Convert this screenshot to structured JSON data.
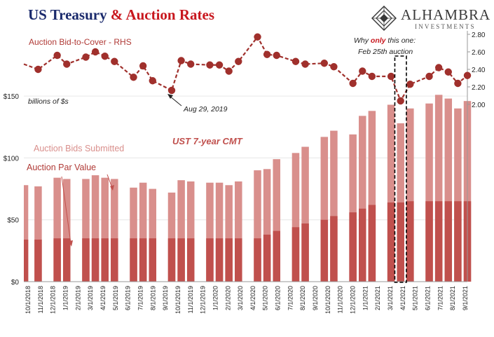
{
  "title": {
    "part1": "US Treasury",
    "part2": "& Auction Rates"
  },
  "logo": {
    "name": "ALHAMBRA",
    "subtitle": "INVESTMENTS",
    "icon": "alhambra-diamond-logo-icon"
  },
  "colors": {
    "submitted": "#d98f8c",
    "par": "#c0504d",
    "btc_line": "#a0302c",
    "annot_text": "#b03a36",
    "cmt_text": "#c0504d",
    "title_blue": "#1a2a6c",
    "title_red": "#c8171e"
  },
  "annotations": {
    "btc_label": "Auction Bid-to-Cover - RHS",
    "units": "billions of $s",
    "cmt": "UST 7-year CMT",
    "bids_label": "Auction Bids Submitted",
    "par_label": "Auction Par Value",
    "aug_note": "Aug 29, 2019",
    "why_pre": "Why ",
    "why_only": "only",
    "why_post": " this one:",
    "feb_note": "Feb 25th auction"
  },
  "chart_data": {
    "type": "bar",
    "categories": [
      "10/1/2018",
      "11/1/2018",
      "12/1/2018",
      "1/1/2019",
      "2/1/2019",
      "3/1/2019",
      "4/1/2019",
      "5/1/2019",
      "6/1/2019",
      "7/1/2019",
      "8/1/2019",
      "9/1/2019",
      "10/1/2019",
      "11/1/2019",
      "12/1/2019",
      "1/1/2020",
      "2/1/2020",
      "3/1/2020",
      "4/1/2020",
      "5/1/2020",
      "6/1/2020",
      "7/1/2020",
      "8/1/2020",
      "9/1/2020",
      "10/1/2020",
      "11/1/2020",
      "12/1/2020",
      "1/1/2021",
      "2/1/2021",
      "3/1/2021",
      "4/1/2021",
      "5/1/2021",
      "6/1/2021",
      "7/1/2021",
      "8/1/2021",
      "9/1/2021"
    ],
    "x_tick_labels": [
      "10/1/2018",
      "11/1/2018",
      "12/1/2018",
      "1/1/2019",
      "2/1/2019",
      "3/1/2019",
      "4/1/2019",
      "5/1/2019",
      "6/1/2019",
      "7/1/2019",
      "8/1/2019",
      "9/1/2019",
      "10/1/2019",
      "11/1/2019",
      "12/1/2019",
      "1/1/2020",
      "2/1/2020",
      "3/1/2020",
      "4/1/2020",
      "5/1/2020",
      "6/1/2020",
      "7/1/2020",
      "8/1/2020",
      "9/1/2020",
      "10/1/2020",
      "11/1/2020",
      "12/1/2020",
      "1/1/2021",
      "2/1/2021",
      "3/1/2021",
      "4/1/2021",
      "5/1/2021",
      "6/1/2021",
      "7/1/2021",
      "8/1/2021",
      "9/1/2021"
    ],
    "bar_slots": [
      {
        "date": "10/1/2018",
        "submitted": 78,
        "par": 34,
        "btc": 2.46,
        "edge": "left"
      },
      {
        "date": "",
        "submitted": 77,
        "par": 34,
        "btc": 2.4
      },
      {
        "date": "11/1/2018",
        "submitted": null,
        "par": null,
        "btc": null
      },
      {
        "date": "",
        "submitted": 84,
        "par": 35,
        "btc": 2.56
      },
      {
        "date": "12/1/2018",
        "submitted": 83,
        "par": 35,
        "btc": 2.46
      },
      {
        "date": "",
        "submitted": null,
        "par": null,
        "btc": null
      },
      {
        "date": "1/1/2019",
        "submitted": 83,
        "par": 35,
        "btc": 2.54
      },
      {
        "date": "",
        "submitted": 86,
        "par": 35,
        "btc": 2.6
      },
      {
        "date": "2/1/2019",
        "submitted": 84,
        "par": 35,
        "btc": 2.55
      },
      {
        "date": "",
        "submitted": 83,
        "par": 35,
        "btc": 2.49
      },
      {
        "date": "3/1/2019",
        "submitted": null,
        "par": null,
        "btc": null
      },
      {
        "date": "",
        "submitted": 76,
        "par": 35,
        "btc": 2.31
      },
      {
        "date": "4/1/2019",
        "submitted": 80,
        "par": 35,
        "btc": 2.44
      },
      {
        "date": "",
        "submitted": 75,
        "par": 35,
        "btc": 2.27
      },
      {
        "date": "5/1/2019",
        "submitted": null,
        "par": null,
        "btc": null
      },
      {
        "date": "",
        "submitted": 72,
        "par": 35,
        "btc": 2.16
      },
      {
        "date": "6/1/2019",
        "submitted": 82,
        "par": 35,
        "btc": 2.5
      },
      {
        "date": "",
        "submitted": 81,
        "par": 35,
        "btc": 2.46
      },
      {
        "date": "7/1/2019",
        "submitted": null,
        "par": null,
        "btc": null
      },
      {
        "date": "",
        "submitted": 80,
        "par": 35,
        "btc": 2.45
      },
      {
        "date": "8/1/2019",
        "submitted": 80,
        "par": 35,
        "btc": 2.45
      },
      {
        "date": "",
        "submitted": 78,
        "par": 35,
        "btc": 2.38
      },
      {
        "date": "9/1/2019",
        "submitted": 81,
        "par": 35,
        "btc": 2.49
      },
      {
        "date": "",
        "submitted": null,
        "par": null,
        "btc": null
      },
      {
        "date": "10/1/2019",
        "submitted": 90,
        "par": 35,
        "btc": 2.77
      },
      {
        "date": "",
        "submitted": 91,
        "par": 38,
        "btc": 2.57
      },
      {
        "date": "11/1/2019",
        "submitted": 99,
        "par": 41,
        "btc": 2.56
      },
      {
        "date": "",
        "submitted": null,
        "par": null,
        "btc": null
      },
      {
        "date": "12/1/2019",
        "submitted": 104,
        "par": 44,
        "btc": 2.49
      },
      {
        "date": "",
        "submitted": 109,
        "par": 47,
        "btc": 2.46
      },
      {
        "date": "1/1/2020",
        "submitted": null,
        "par": null,
        "btc": null
      },
      {
        "date": "",
        "submitted": 117,
        "par": 50,
        "btc": 2.47
      },
      {
        "date": "2/1/2020",
        "submitted": 122,
        "par": 53,
        "btc": 2.43
      },
      {
        "date": "",
        "submitted": null,
        "par": null,
        "btc": null
      },
      {
        "date": "3/1/2020",
        "submitted": 119,
        "par": 56,
        "btc": 2.24
      },
      {
        "date": "",
        "submitted": 134,
        "par": 59,
        "btc": 2.38
      },
      {
        "date": "4/1/2020",
        "submitted": 138,
        "par": 62,
        "btc": 2.32
      },
      {
        "date": "",
        "submitted": null,
        "par": null,
        "btc": null
      },
      {
        "date": "5/1/2020",
        "submitted": 143,
        "par": 64,
        "btc": 2.32
      },
      {
        "date": "",
        "submitted": 128,
        "par": 64,
        "btc": 2.04,
        "highlight": true
      },
      {
        "date": "6/1/2020",
        "submitted": 140,
        "par": 65,
        "btc": 2.23
      },
      {
        "date": "",
        "submitted": null,
        "par": null,
        "btc": null
      },
      {
        "date": "7/1/2020",
        "submitted": 144,
        "par": 65,
        "btc": 2.32
      },
      {
        "date": "",
        "submitted": 151,
        "par": 65,
        "btc": 2.42
      },
      {
        "date": "8/1/2020",
        "submitted": 148,
        "par": 65,
        "btc": 2.37
      },
      {
        "date": "",
        "submitted": 140,
        "par": 65,
        "btc": 2.24
      },
      {
        "date": "9/1/2020",
        "submitted": 146,
        "par": 65,
        "btc": 2.33,
        "edge": "right"
      }
    ],
    "left_axis": {
      "ticks": [
        "$0",
        "$50",
        "$100",
        "$150"
      ],
      "values": [
        0,
        50,
        100,
        150
      ],
      "ylim": [
        0,
        205
      ]
    },
    "right_axis": {
      "ticks": [
        "2.00",
        "2.20",
        "2.40",
        "2.60",
        "2.80"
      ],
      "values": [
        2.0,
        2.2,
        2.4,
        2.6,
        2.8
      ]
    },
    "series": [
      {
        "name": "Auction Bids Submitted",
        "type": "bar"
      },
      {
        "name": "Auction Par Value",
        "type": "bar"
      },
      {
        "name": "Auction Bid-to-Cover - RHS",
        "type": "line"
      }
    ],
    "grid": true
  }
}
